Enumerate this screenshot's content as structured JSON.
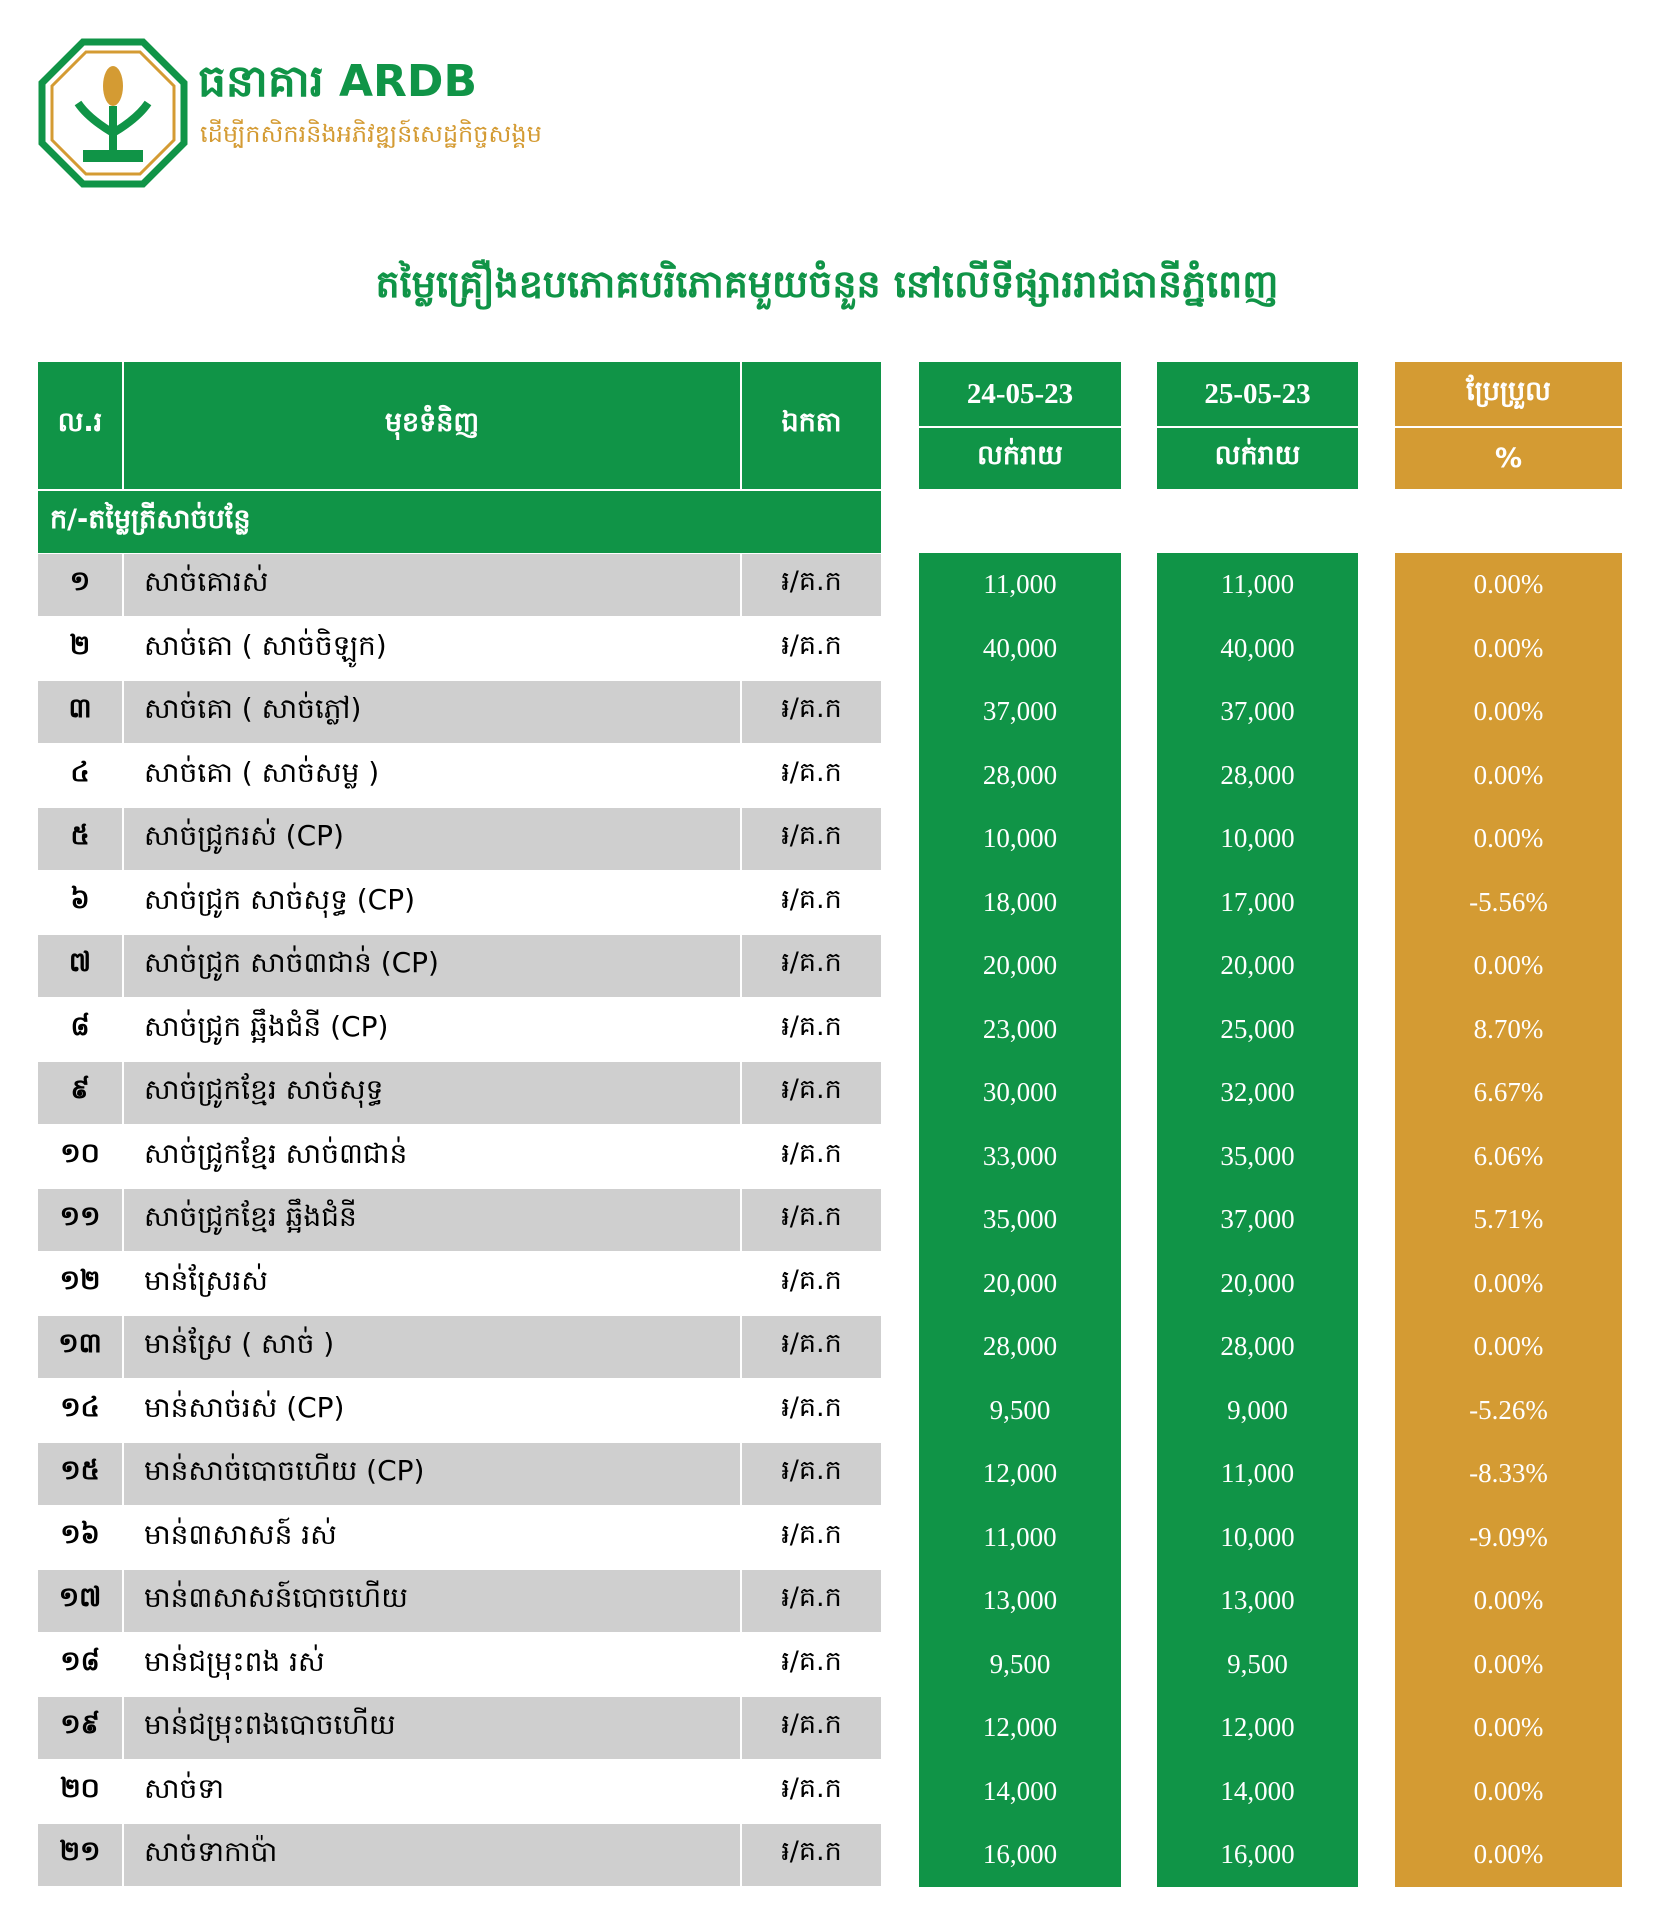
{
  "header": {
    "bank_name": "ធនាគារ ARDB",
    "slogan": "ដើម្បីកសិករនិងអភិវឌ្ឍន៍សេដ្ឋកិច្ចសង្គម",
    "title": "តម្លៃគ្រឿងឧបភោគបរិភោគមួយចំនួន នៅលើទីផ្សាររាជធានីភ្នំពេញ"
  },
  "table": {
    "columns": [
      "ល.រ",
      "មុខទំនិញ",
      "ឯកតា",
      "24-05-23",
      "25-05-23",
      "ប្រែប្រួល"
    ],
    "subcolumns": [
      "លក់រាយ",
      "លក់រាយ",
      "%"
    ],
    "section": "ក/-តម្លៃត្រីសាច់បន្លែ",
    "rows": [
      [
        "១",
        "សាច់គោរស់",
        "៛/គ.ក",
        "11,000",
        "11,000",
        "0.00%"
      ],
      [
        "២",
        "សាច់គោ ( សាច់ចិឡូក)",
        "៛/គ.ក",
        "40,000",
        "40,000",
        "0.00%"
      ],
      [
        "៣",
        "សាច់គោ ( សាច់ភ្លៅ)",
        "៛/គ.ក",
        "37,000",
        "37,000",
        "0.00%"
      ],
      [
        "៤",
        "សាច់គោ ( សាច់សម្ល )",
        "៛/គ.ក",
        "28,000",
        "28,000",
        "0.00%"
      ],
      [
        "៥",
        "សាច់ជ្រូករស់ (CP)",
        "៛/គ.ក",
        "10,000",
        "10,000",
        "0.00%"
      ],
      [
        "៦",
        "សាច់ជ្រូក សាច់សុទ្ធ (CP)",
        "៛/គ.ក",
        "18,000",
        "17,000",
        "-5.56%"
      ],
      [
        "៧",
        "សាច់ជ្រូក សាច់៣ជាន់ (CP)",
        "៛/គ.ក",
        "20,000",
        "20,000",
        "0.00%"
      ],
      [
        "៨",
        "សាច់ជ្រូក ឆ្អឹងជំនី (CP)",
        "៛/គ.ក",
        "23,000",
        "25,000",
        "8.70%"
      ],
      [
        "៩",
        "សាច់ជ្រូកខ្មែរ សាច់សុទ្ធ",
        "៛/គ.ក",
        "30,000",
        "32,000",
        "6.67%"
      ],
      [
        "១០",
        "សាច់ជ្រូកខ្មែរ សាច់៣ជាន់",
        "៛/គ.ក",
        "33,000",
        "35,000",
        "6.06%"
      ],
      [
        "១១",
        "សាច់ជ្រូកខ្មែរ ឆ្អឹងជំនី",
        "៛/គ.ក",
        "35,000",
        "37,000",
        "5.71%"
      ],
      [
        "១២",
        "មាន់ស្រែរស់",
        "៛/គ.ក",
        "20,000",
        "20,000",
        "0.00%"
      ],
      [
        "១៣",
        "មាន់ស្រែ ( សាច់ )",
        "៛/គ.ក",
        "28,000",
        "28,000",
        "0.00%"
      ],
      [
        "១៤",
        "មាន់សាច់រស់ (CP)",
        "៛/គ.ក",
        "9,500",
        "9,000",
        "-5.26%"
      ],
      [
        "១៥",
        "មាន់សាច់បោចហើយ (CP)",
        "៛/គ.ក",
        "12,000",
        "11,000",
        "-8.33%"
      ],
      [
        "១៦",
        "មាន់៣សាសន៍ រស់",
        "៛/គ.ក",
        "11,000",
        "10,000",
        "-9.09%"
      ],
      [
        "១៧",
        "មាន់៣សាសន៍បោចហើយ",
        "៛/គ.ក",
        "13,000",
        "13,000",
        "0.00%"
      ],
      [
        "១៨",
        "មាន់ជម្រុះពង រស់",
        "៛/គ.ក",
        "9,500",
        "9,500",
        "0.00%"
      ],
      [
        "១៩",
        "មាន់ជម្រុះពងបោចហើយ",
        "៛/គ.ក",
        "12,000",
        "12,000",
        "0.00%"
      ],
      [
        "២០",
        "សាច់ទា",
        "៛/គ.ក",
        "14,000",
        "14,000",
        "0.00%"
      ],
      [
        "២១",
        "សាច់ទាកាប៉ា",
        "៛/គ.ក",
        "16,000",
        "16,000",
        "0.00%"
      ]
    ]
  }
}
